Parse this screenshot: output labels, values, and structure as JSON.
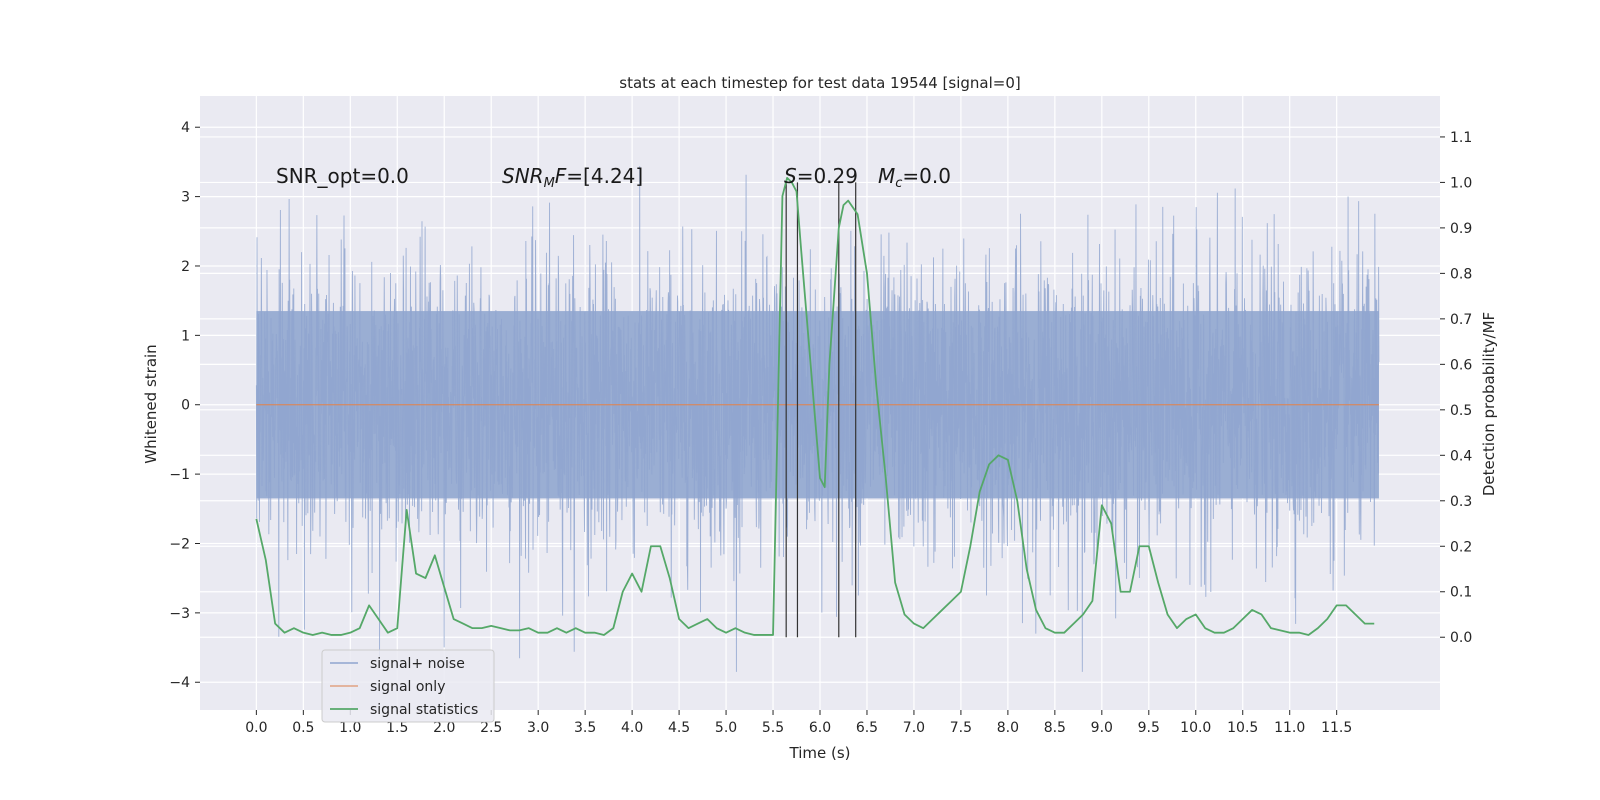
{
  "chart_data": {
    "type": "line",
    "title": "stats at each timestep for test data 19544 [signal=0]",
    "xlabel": "Time (s)",
    "ylabel": "Whitened strain",
    "y2label": "Detection probability/MF",
    "xlim": [
      -0.6,
      12.6
    ],
    "ylim": [
      -4.4,
      4.45
    ],
    "y2lim": [
      -0.16,
      1.19
    ],
    "x_ticks": [
      "0.0",
      "0.5",
      "1.0",
      "1.5",
      "2.0",
      "2.5",
      "3.0",
      "3.5",
      "4.0",
      "4.5",
      "5.0",
      "5.5",
      "6.0",
      "6.5",
      "7.0",
      "7.5",
      "8.0",
      "8.5",
      "9.0",
      "9.5",
      "10.0",
      "10.5",
      "11.0",
      "11.5"
    ],
    "y_ticks": [
      "4",
      "3",
      "2",
      "1",
      "0",
      "−1",
      "−2",
      "−3",
      "−4"
    ],
    "y2_ticks": [
      "1.1",
      "1.0",
      "0.9",
      "0.8",
      "0.7",
      "0.6",
      "0.5",
      "0.4",
      "0.3",
      "0.2",
      "0.1",
      "0.0"
    ],
    "grid": true,
    "legend_placement": "lower-left",
    "annotations": {
      "snr_opt": "SNR_opt=0.0",
      "snr_mf": "=[4.24]",
      "s": "=0.29",
      "mc": "=0.0"
    },
    "series": [
      {
        "name": "signal+ noise",
        "color": "#8fa5cf",
        "description_range": [
          0.0,
          11.95
        ],
        "envelope": {
          "typical_low": -2.6,
          "typical_high": 2.6,
          "min": -3.85,
          "max": 4.1
        }
      },
      {
        "name": "signal only",
        "color": "#dd8452",
        "x": [
          0.0,
          11.95
        ],
        "y": [
          0.0,
          0.0
        ]
      },
      {
        "name": "signal statistics",
        "color": "#55a868",
        "axis": "right",
        "x": [
          0.0,
          0.1,
          0.2,
          0.3,
          0.4,
          0.5,
          0.6,
          0.7,
          0.8,
          0.9,
          1.0,
          1.1,
          1.2,
          1.3,
          1.4,
          1.5,
          1.6,
          1.7,
          1.8,
          1.9,
          2.0,
          2.1,
          2.2,
          2.3,
          2.4,
          2.5,
          2.6,
          2.7,
          2.8,
          2.9,
          3.0,
          3.1,
          3.2,
          3.3,
          3.4,
          3.5,
          3.6,
          3.7,
          3.8,
          3.9,
          4.0,
          4.1,
          4.2,
          4.3,
          4.4,
          4.5,
          4.6,
          4.7,
          4.8,
          4.9,
          5.0,
          5.1,
          5.2,
          5.3,
          5.4,
          5.5,
          5.6,
          5.65,
          5.7,
          5.75,
          5.8,
          5.9,
          6.0,
          6.05,
          6.1,
          6.2,
          6.25,
          6.3,
          6.4,
          6.5,
          6.6,
          6.7,
          6.8,
          6.9,
          7.0,
          7.1,
          7.2,
          7.3,
          7.4,
          7.5,
          7.6,
          7.7,
          7.8,
          7.9,
          8.0,
          8.1,
          8.2,
          8.3,
          8.4,
          8.5,
          8.6,
          8.7,
          8.8,
          8.9,
          9.0,
          9.1,
          9.2,
          9.3,
          9.4,
          9.5,
          9.6,
          9.7,
          9.8,
          9.9,
          10.0,
          10.1,
          10.2,
          10.3,
          10.4,
          10.5,
          10.6,
          10.7,
          10.8,
          10.9,
          11.0,
          11.1,
          11.2,
          11.3,
          11.4,
          11.5,
          11.6,
          11.7,
          11.8,
          11.9
        ],
        "y": [
          0.26,
          0.17,
          0.03,
          0.01,
          0.02,
          0.01,
          0.005,
          0.01,
          0.005,
          0.005,
          0.01,
          0.02,
          0.07,
          0.04,
          0.01,
          0.02,
          0.28,
          0.14,
          0.13,
          0.18,
          0.11,
          0.04,
          0.03,
          0.02,
          0.02,
          0.025,
          0.02,
          0.015,
          0.015,
          0.02,
          0.01,
          0.01,
          0.02,
          0.01,
          0.02,
          0.01,
          0.01,
          0.005,
          0.02,
          0.1,
          0.14,
          0.1,
          0.2,
          0.2,
          0.13,
          0.04,
          0.02,
          0.03,
          0.04,
          0.02,
          0.01,
          0.02,
          0.01,
          0.005,
          0.005,
          0.005,
          0.97,
          1.01,
          1.0,
          0.98,
          0.85,
          0.6,
          0.35,
          0.33,
          0.6,
          0.9,
          0.95,
          0.96,
          0.93,
          0.8,
          0.55,
          0.35,
          0.12,
          0.05,
          0.03,
          0.02,
          0.04,
          0.06,
          0.08,
          0.1,
          0.2,
          0.32,
          0.38,
          0.4,
          0.39,
          0.3,
          0.15,
          0.06,
          0.02,
          0.01,
          0.01,
          0.03,
          0.05,
          0.08,
          0.29,
          0.25,
          0.1,
          0.1,
          0.2,
          0.2,
          0.12,
          0.05,
          0.02,
          0.04,
          0.05,
          0.02,
          0.01,
          0.01,
          0.02,
          0.04,
          0.06,
          0.05,
          0.02,
          0.015,
          0.01,
          0.01,
          0.005,
          0.02,
          0.04,
          0.07,
          0.07,
          0.05,
          0.03,
          0.03
        ]
      }
    ],
    "vertical_markers": [
      5.64,
      5.76,
      6.2,
      6.38
    ]
  }
}
